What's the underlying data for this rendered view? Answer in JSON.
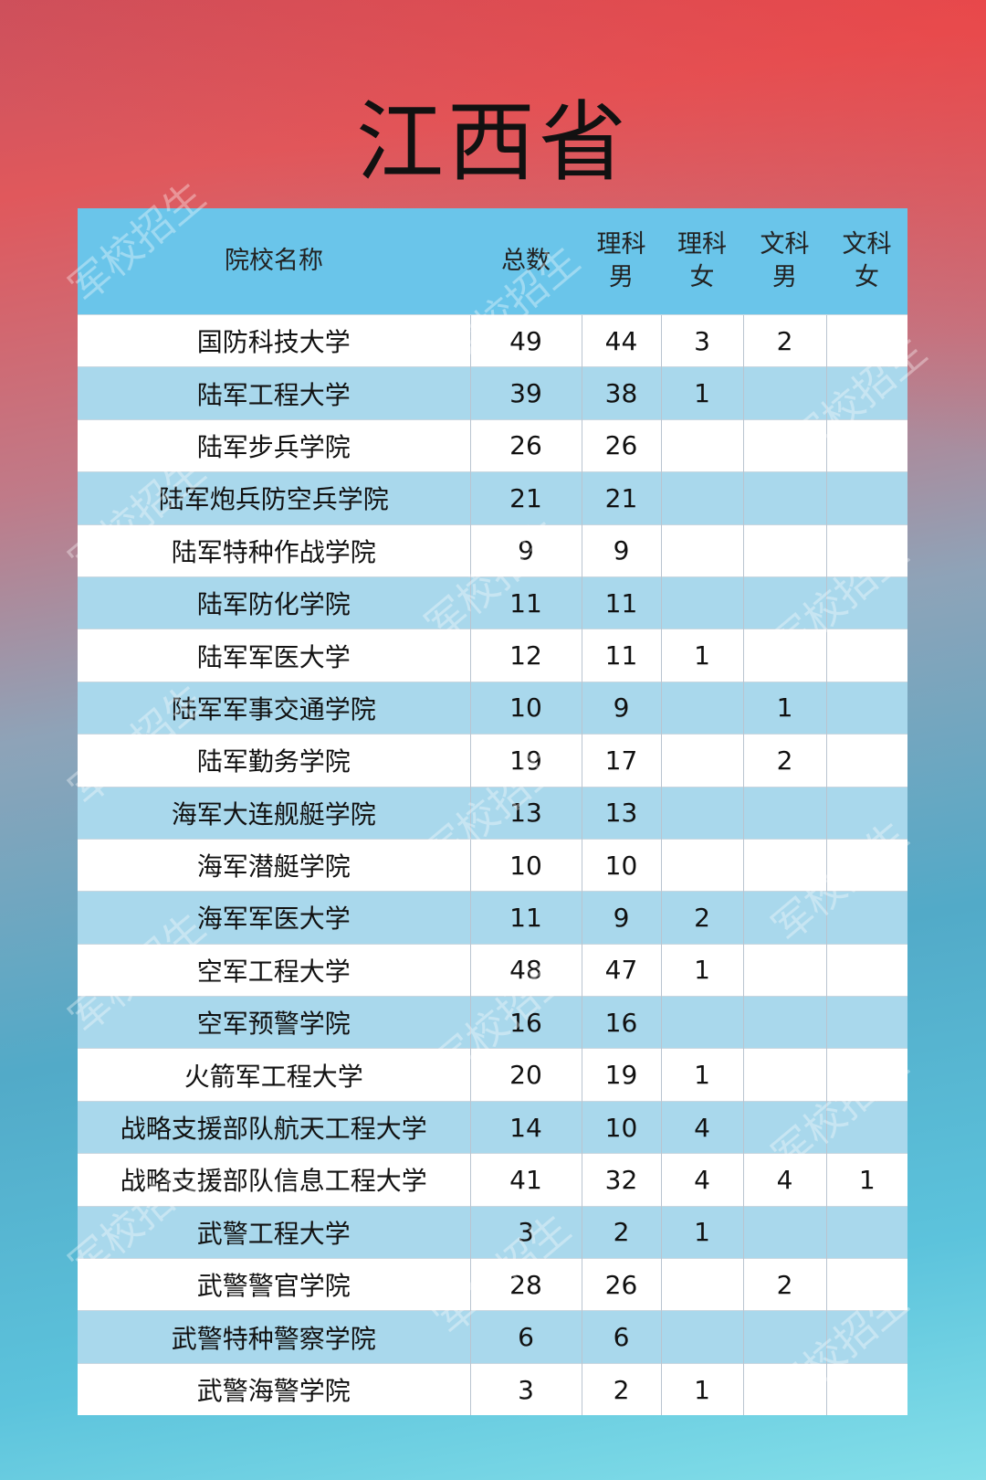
{
  "title": "江西省",
  "watermark": "军校招生",
  "table": {
    "headers": [
      "院校名称",
      "总数",
      "理科男",
      "理科女",
      "文科男",
      "文科女"
    ],
    "headers_display": [
      [
        "院校名称"
      ],
      [
        "总数"
      ],
      [
        "理科",
        "男"
      ],
      [
        "理科",
        "女"
      ],
      [
        "文科",
        "男"
      ],
      [
        "文科",
        "女"
      ]
    ],
    "rows": [
      [
        "国防科技大学",
        "49",
        "44",
        "3",
        "2",
        ""
      ],
      [
        "陆军工程大学",
        "39",
        "38",
        "1",
        "",
        ""
      ],
      [
        "陆军步兵学院",
        "26",
        "26",
        "",
        "",
        ""
      ],
      [
        "陆军炮兵防空兵学院",
        "21",
        "21",
        "",
        "",
        ""
      ],
      [
        "陆军特种作战学院",
        "9",
        "9",
        "",
        "",
        ""
      ],
      [
        "陆军防化学院",
        "11",
        "11",
        "",
        "",
        ""
      ],
      [
        "陆军军医大学",
        "12",
        "11",
        "1",
        "",
        ""
      ],
      [
        "陆军军事交通学院",
        "10",
        "9",
        "",
        "1",
        ""
      ],
      [
        "陆军勤务学院",
        "19",
        "17",
        "",
        "2",
        ""
      ],
      [
        "海军大连舰艇学院",
        "13",
        "13",
        "",
        "",
        ""
      ],
      [
        "海军潜艇学院",
        "10",
        "10",
        "",
        "",
        ""
      ],
      [
        "海军军医大学",
        "11",
        "9",
        "2",
        "",
        ""
      ],
      [
        "空军工程大学",
        "48",
        "47",
        "1",
        "",
        ""
      ],
      [
        "空军预警学院",
        "16",
        "16",
        "",
        "",
        ""
      ],
      [
        "火箭军工程大学",
        "20",
        "19",
        "1",
        "",
        ""
      ],
      [
        "战略支援部队航天工程大学",
        "14",
        "10",
        "4",
        "",
        ""
      ],
      [
        "战略支援部队信息工程大学",
        "41",
        "32",
        "4",
        "4",
        "1"
      ],
      [
        "武警工程大学",
        "3",
        "2",
        "1",
        "",
        ""
      ],
      [
        "武警警官学院",
        "28",
        "26",
        "",
        "2",
        ""
      ],
      [
        "武警特种警察学院",
        "6",
        "6",
        "",
        "",
        ""
      ],
      [
        "武警海警学院",
        "3",
        "2",
        "1",
        "",
        ""
      ]
    ]
  },
  "colors": {
    "header": "#6ac5ea",
    "row_alt": "#a9d8ec",
    "row": "#ffffff"
  }
}
